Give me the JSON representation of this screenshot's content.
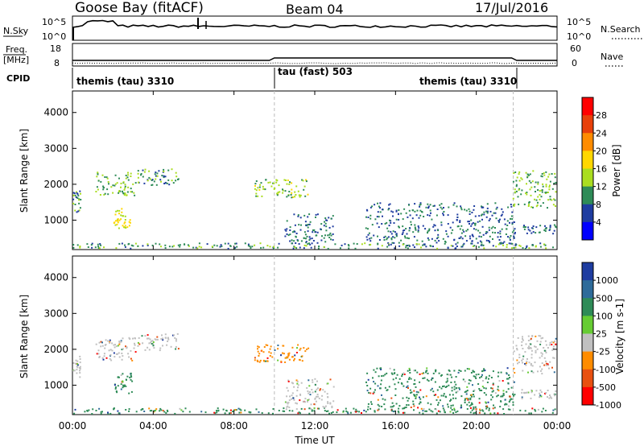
{
  "header": {
    "radar": "Goose Bay (fitACF)",
    "beam": "Beam 04",
    "date": "17/Jul/2016"
  },
  "noise_panel": {
    "left_label": "N.Sky",
    "left_ticks": [
      "10^5",
      "10^0"
    ],
    "right_label": "N.Search",
    "right_ticks": [
      "10^5",
      "10^0"
    ]
  },
  "freq_panel": {
    "left_label_line1": "Freq.",
    "left_label_line2": "[MHz]",
    "left_ticks": [
      "18",
      "8"
    ],
    "right_label": "Nave",
    "right_ticks": [
      "60",
      "0"
    ]
  },
  "cpid_panel": {
    "label": "CPID",
    "segments": [
      {
        "text": "themis (tau) 3310",
        "start_h": 0.0
      },
      {
        "text": "tau (fast) 503",
        "start_h": 10.0
      },
      {
        "text": "themis (tau) 3310",
        "start_h": 21.83
      }
    ],
    "boundaries_h": [
      10.0,
      21.83
    ]
  },
  "power_panel": {
    "ylabel": "Slant Range [km]",
    "colorbar_label": "Power [dB]",
    "colorbar_ticks": [
      "28",
      "24",
      "20",
      "16",
      "12",
      "8",
      "4"
    ],
    "colors": [
      "#ff0000",
      "#e8400a",
      "#ff8c00",
      "#ffd700",
      "#aadd20",
      "#2e8b57",
      "#1e3ca0",
      "#0000ff"
    ]
  },
  "velocity_panel": {
    "ylabel": "Slant Range [km]",
    "colorbar_label": "Velocity [m s-1]",
    "colorbar_ticks": [
      "1000",
      "500",
      "100",
      "25",
      "-25",
      "-100",
      "-500",
      "-1000"
    ],
    "colors": [
      "#1e3ca0",
      "#2e6b9a",
      "#2e8b57",
      "#66cc33",
      "#c0c0c0",
      "#ff8c00",
      "#e85010",
      "#ff0000"
    ]
  },
  "chart_data": {
    "type": "heatmap",
    "xlabel": "Time UT",
    "x_tick_labels": [
      "00:00",
      "04:00",
      "08:00",
      "12:00",
      "16:00",
      "20:00",
      "00:00"
    ],
    "x_ticks_h": [
      0,
      4,
      8,
      12,
      16,
      20,
      24
    ],
    "xlim": [
      0,
      24
    ],
    "ylim": [
      180,
      4600
    ],
    "y_tick_labels": [
      "1000",
      "2000",
      "3000",
      "4000"
    ],
    "y_ticks": [
      1000,
      2000,
      3000,
      4000
    ],
    "power_scale": [
      0,
      30
    ],
    "velocity_scale": [
      -1000,
      1000
    ],
    "echo_regions": [
      {
        "t": [
          0.0,
          0.45
        ],
        "r": [
          1200,
          1850
        ],
        "power": 8,
        "velocity": 25
      },
      {
        "t": [
          1.1,
          3.2
        ],
        "r": [
          1650,
          2350
        ],
        "power": 10,
        "velocity": 25
      },
      {
        "t": [
          2.0,
          3.0
        ],
        "r": [
          750,
          1350
        ],
        "power": 14,
        "velocity": 100
      },
      {
        "t": [
          3.2,
          5.3
        ],
        "r": [
          1950,
          2450
        ],
        "power": 8,
        "velocity": 25
      },
      {
        "t": [
          9.0,
          11.8
        ],
        "r": [
          1600,
          2150
        ],
        "power": 12,
        "velocity": -100
      },
      {
        "t": [
          10.5,
          13.0
        ],
        "r": [
          300,
          1200
        ],
        "power": 6,
        "velocity": 25
      },
      {
        "t": [
          14.5,
          22.0
        ],
        "r": [
          300,
          1500
        ],
        "power": 6,
        "velocity": 100
      },
      {
        "t": [
          21.8,
          24.0
        ],
        "r": [
          1300,
          2400
        ],
        "power": 10,
        "velocity": 25
      },
      {
        "t": [
          22.2,
          24.0
        ],
        "r": [
          600,
          900
        ],
        "power": 6,
        "velocity": 25
      },
      {
        "t": [
          0.0,
          24.0
        ],
        "r": [
          180,
          380
        ],
        "power": 8,
        "velocity": 100
      }
    ]
  }
}
